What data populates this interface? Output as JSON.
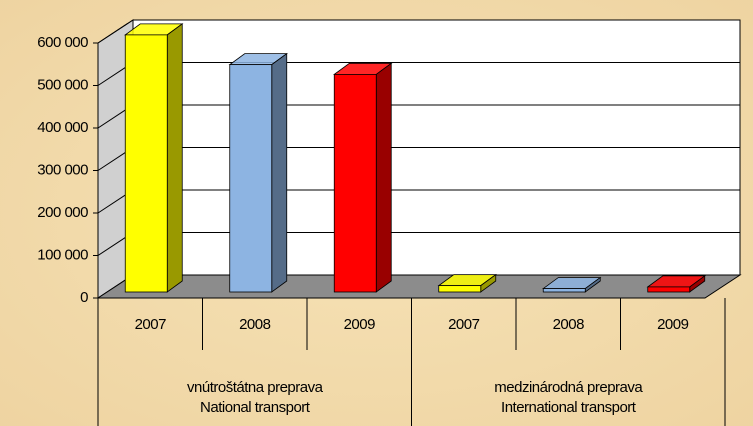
{
  "chart_data": {
    "type": "bar",
    "categories": [
      "2007",
      "2008",
      "2009",
      "2007",
      "2008",
      "2009"
    ],
    "values": [
      605000,
      535000,
      512000,
      15000,
      8000,
      12000
    ],
    "colors": [
      "#ffff00",
      "#8db4e2",
      "#ff0000",
      "#ffff00",
      "#8db4e2",
      "#ff0000"
    ],
    "groups": [
      [
        "vnútroštátna preprava",
        "National transport"
      ],
      [
        "medzinárodná preprava",
        "International transport"
      ]
    ],
    "ylim": [
      0,
      600000
    ],
    "yticks": [
      0,
      {
        "value": 100000,
        "label": "100 000"
      },
      {
        "value": 200000,
        "label": "200 000"
      },
      {
        "value": 300000,
        "label": "300 000"
      },
      {
        "value": 400000,
        "label": "400 000"
      },
      {
        "value": 500000,
        "label": "500 000"
      },
      {
        "value": 600000,
        "label": "600 000"
      }
    ],
    "grid": true
  }
}
